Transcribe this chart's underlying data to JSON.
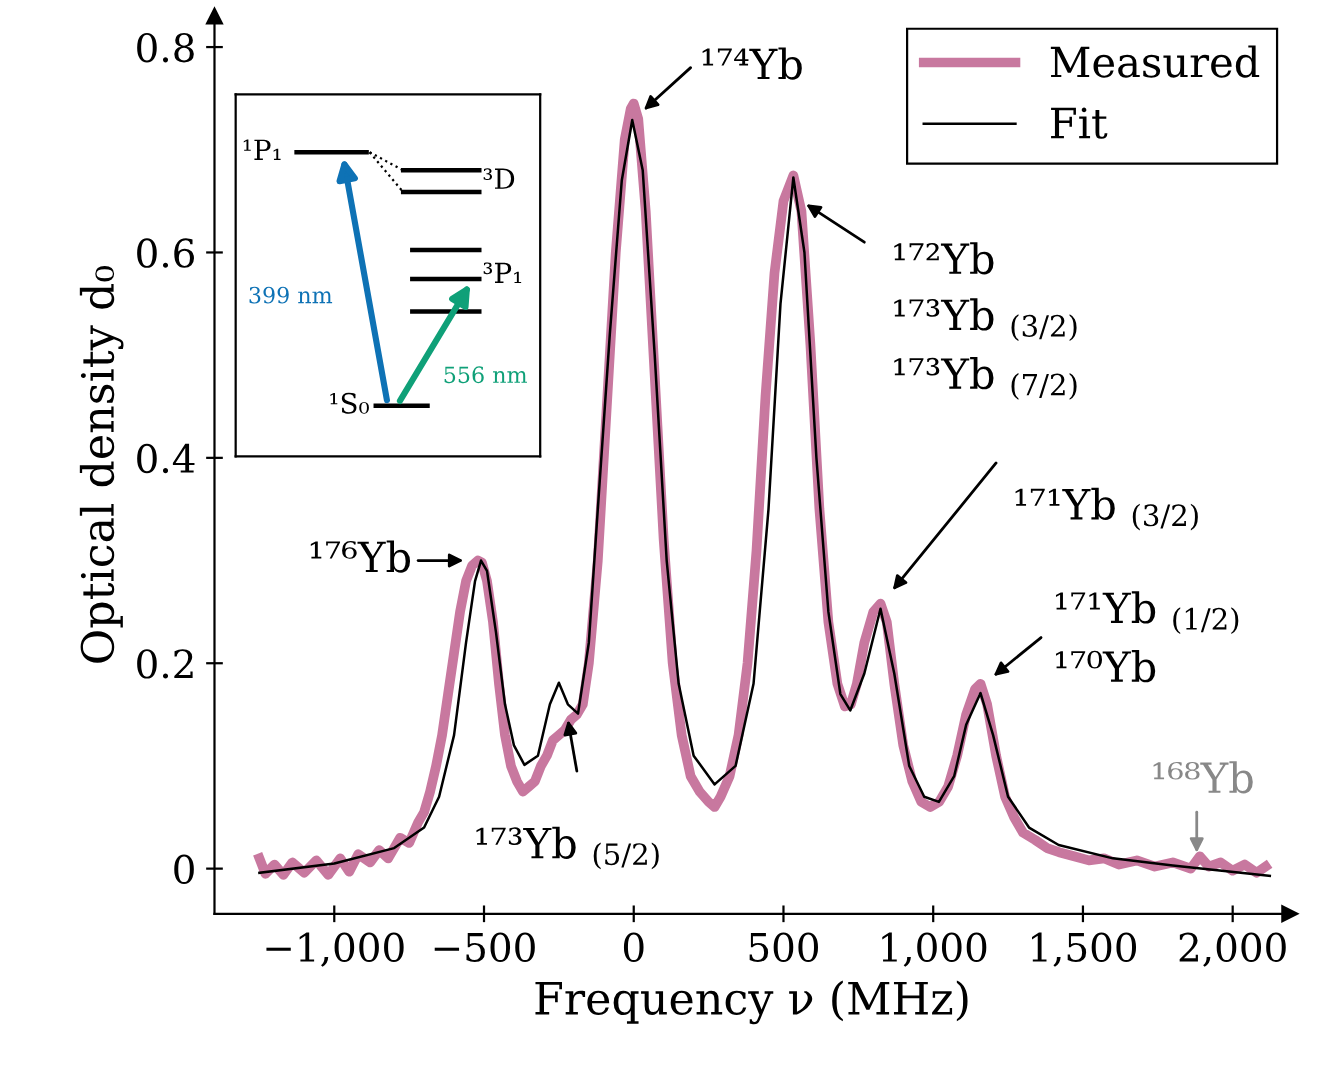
{
  "chart_data": {
    "type": "line",
    "xlabel": "Frequency ν (MHz)",
    "ylabel": "Optical density d₀",
    "xlim": [
      -1400,
      2190
    ],
    "ylim": [
      -0.044,
      0.83
    ],
    "xticks": [
      {
        "value": -1000,
        "label": "−1,000"
      },
      {
        "value": -500,
        "label": "−500"
      },
      0,
      500,
      {
        "value": 1000,
        "label": "1,000"
      },
      {
        "value": 1500,
        "label": "1,500"
      },
      {
        "value": 2000,
        "label": "2,000"
      }
    ],
    "yticks": [
      0,
      0.2,
      0.4,
      0.6,
      0.8
    ],
    "grid": false,
    "legend": "top right",
    "series": [
      {
        "name": "Measured",
        "color": "#c8789f",
        "x": [
          -1250,
          -1230,
          -1200,
          -1170,
          -1140,
          -1100,
          -1060,
          -1020,
          -980,
          -950,
          -920,
          -880,
          -850,
          -820,
          -780,
          -750,
          -720,
          -700,
          -680,
          -660,
          -640,
          -620,
          -600,
          -580,
          -560,
          -540,
          -520,
          -507,
          -490,
          -470,
          -450,
          -430,
          -410,
          -390,
          -370,
          -350,
          -330,
          -310,
          -290,
          -270,
          -250,
          -230,
          -210,
          -190,
          -170,
          -150,
          -120,
          -90,
          -60,
          -30,
          -10,
          0,
          15,
          40,
          70,
          100,
          130,
          160,
          190,
          220,
          250,
          270,
          290,
          320,
          350,
          380,
          410,
          440,
          470,
          500,
          533,
          560,
          590,
          620,
          650,
          680,
          705,
          725,
          745,
          770,
          800,
          824,
          845,
          870,
          900,
          930,
          960,
          990,
          1020,
          1050,
          1080,
          1110,
          1140,
          1158,
          1180,
          1210,
          1240,
          1270,
          1300,
          1340,
          1380,
          1420,
          1470,
          1520,
          1570,
          1620,
          1680,
          1740,
          1800,
          1860,
          1890,
          1920,
          1960,
          2000,
          2040,
          2080,
          2110
        ],
        "values": [
          0.01,
          -0.005,
          0.004,
          -0.006,
          0.006,
          -0.004,
          0.008,
          -0.006,
          0.01,
          -0.003,
          0.014,
          0.006,
          0.018,
          0.01,
          0.03,
          0.025,
          0.045,
          0.055,
          0.075,
          0.1,
          0.13,
          0.17,
          0.21,
          0.25,
          0.28,
          0.295,
          0.3,
          0.298,
          0.28,
          0.24,
          0.18,
          0.13,
          0.1,
          0.085,
          0.075,
          0.08,
          0.085,
          0.1,
          0.11,
          0.125,
          0.13,
          0.135,
          0.145,
          0.15,
          0.16,
          0.2,
          0.3,
          0.45,
          0.6,
          0.71,
          0.74,
          0.745,
          0.73,
          0.64,
          0.48,
          0.32,
          0.2,
          0.13,
          0.09,
          0.075,
          0.065,
          0.06,
          0.07,
          0.09,
          0.13,
          0.2,
          0.31,
          0.46,
          0.58,
          0.65,
          0.675,
          0.64,
          0.51,
          0.35,
          0.24,
          0.18,
          0.158,
          0.16,
          0.18,
          0.22,
          0.25,
          0.258,
          0.24,
          0.18,
          0.12,
          0.085,
          0.065,
          0.06,
          0.065,
          0.08,
          0.11,
          0.15,
          0.175,
          0.18,
          0.16,
          0.11,
          0.07,
          0.05,
          0.035,
          0.028,
          0.02,
          0.016,
          0.012,
          0.008,
          0.01,
          0.004,
          0.008,
          0.002,
          0.006,
          0.0,
          0.012,
          0.002,
          0.006,
          -0.002,
          0.004,
          -0.004,
          0.002
        ]
      },
      {
        "name": "Fit",
        "color": "#000000",
        "x": [
          -1250,
          -1000,
          -800,
          -700,
          -650,
          -600,
          -560,
          -530,
          -510,
          -490,
          -460,
          -430,
          -400,
          -365,
          -320,
          -280,
          -250,
          -220,
          -186,
          -150,
          -120,
          -80,
          -40,
          -5,
          30,
          70,
          110,
          150,
          200,
          270,
          340,
          400,
          450,
          490,
          533,
          570,
          610,
          650,
          690,
          723,
          770,
          824,
          870,
          920,
          970,
          1019,
          1070,
          1110,
          1158,
          1200,
          1250,
          1320,
          1419,
          1600,
          1800,
          2124
        ],
        "values": [
          -0.004,
          0.005,
          0.02,
          0.04,
          0.07,
          0.13,
          0.22,
          0.28,
          0.3,
          0.29,
          0.23,
          0.16,
          0.12,
          0.101,
          0.11,
          0.16,
          0.181,
          0.16,
          0.151,
          0.22,
          0.35,
          0.52,
          0.67,
          0.729,
          0.68,
          0.5,
          0.3,
          0.18,
          0.11,
          0.082,
          0.1,
          0.18,
          0.35,
          0.55,
          0.673,
          0.6,
          0.4,
          0.25,
          0.17,
          0.154,
          0.19,
          0.253,
          0.19,
          0.1,
          0.07,
          0.065,
          0.09,
          0.14,
          0.171,
          0.13,
          0.07,
          0.04,
          0.023,
          0.01,
          0.003,
          -0.007
        ]
      }
    ],
    "annotations": [
      {
        "text": "¹⁷⁴Yb",
        "x": 20,
        "y": 0.735
      },
      {
        "text": "¹⁷²Yb\n¹⁷³Yb $_{(3/2)}$\n¹⁷³Yb $_{(7/2)}$",
        "x": 560,
        "y": 0.65
      },
      {
        "text": "¹⁷¹Yb $_{(3/2)}$",
        "x": 853,
        "y": 0.267
      },
      {
        "text": "¹⁷¹Yb $_{(1/2)}$\n¹⁷⁰Yb",
        "x": 1187,
        "y": 0.184
      },
      {
        "text": "¹⁷⁶Yb",
        "x": -550,
        "y": 0.3
      },
      {
        "text": "¹⁷³Yb $_{(5/2)}$",
        "x": -223,
        "y": 0.15
      },
      {
        "text": "¹⁶⁸Yb",
        "x": 1880,
        "y": 0.01
      },
      "¹P₁",
      "³D",
      "³P₁",
      "¹S₀",
      "399 nm",
      "556 nm"
    ]
  }
}
